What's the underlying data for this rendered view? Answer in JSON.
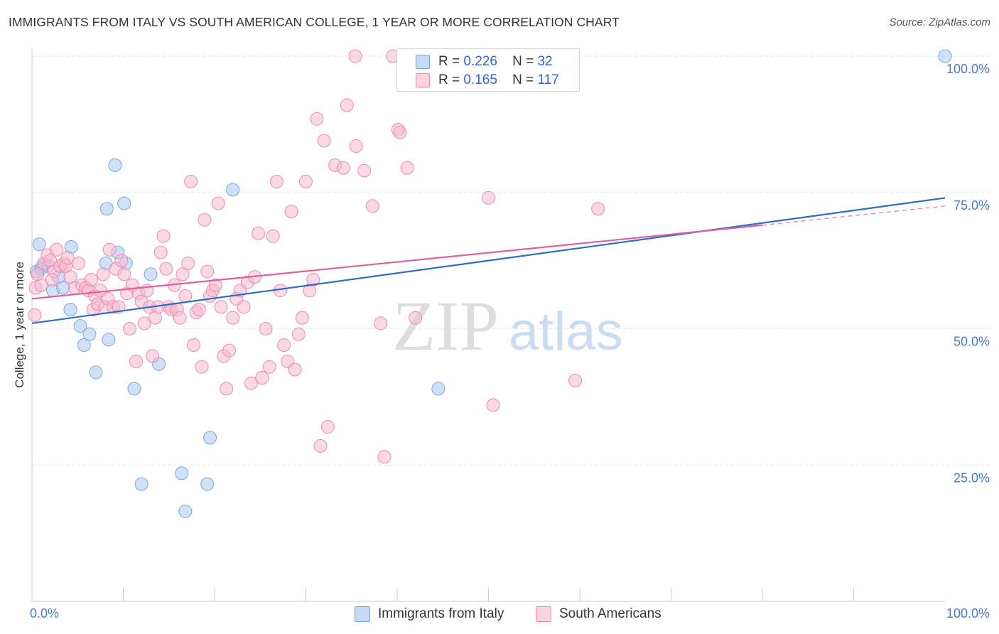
{
  "title": "IMMIGRANTS FROM ITALY VS SOUTH AMERICAN COLLEGE, 1 YEAR OR MORE CORRELATION CHART",
  "source": "Source: ZipAtlas.com",
  "watermark": {
    "zip": "ZIP",
    "atlas": "atlas"
  },
  "legend": {
    "rows": [
      {
        "r_label": "R =",
        "r_value": "0.226",
        "n_label": "N =",
        "n_value": "32",
        "color": "#a9c8f0"
      },
      {
        "r_label": "R =",
        "r_value": "0.165",
        "n_label": "N =",
        "n_value": "117",
        "color": "#f6b8cd"
      }
    ]
  },
  "bottom_legend": [
    "Immigrants from Italy",
    "South Americans"
  ],
  "chart_data": {
    "type": "scatter",
    "xlabel": "",
    "ylabel": "College, 1 year or more",
    "xlim": [
      0,
      100
    ],
    "ylim": [
      0,
      100
    ],
    "x_tick_labels": [
      {
        "value": 0,
        "label": "0.0%"
      },
      {
        "value": 100,
        "label": "100.0%"
      }
    ],
    "y_tick_labels": [
      {
        "value": 25,
        "label": "25.0%"
      },
      {
        "value": 50,
        "label": "50.0%"
      },
      {
        "value": 75,
        "label": "75.0%"
      },
      {
        "value": 100,
        "label": "100.0%"
      }
    ],
    "grid": true,
    "series": [
      {
        "name": "Immigrants from Italy",
        "color": "#a9c8f0",
        "stroke": "#7aa6dd",
        "line_color": "#2d6bcc",
        "trend": {
          "x0": 0,
          "y0": 51.0,
          "x1": 100,
          "y1": 74.0
        },
        "points": [
          [
            0.5,
            60.5
          ],
          [
            0.8,
            65.5
          ],
          [
            1.2,
            61.5
          ],
          [
            1.8,
            61.5
          ],
          [
            2.3,
            57.0
          ],
          [
            2.9,
            59.5
          ],
          [
            3.4,
            57.5
          ],
          [
            4.3,
            65.0
          ],
          [
            4.2,
            53.5
          ],
          [
            5.3,
            50.5
          ],
          [
            5.7,
            47.0
          ],
          [
            6.3,
            49.0
          ],
          [
            7.0,
            42.0
          ],
          [
            8.1,
            62.0
          ],
          [
            8.2,
            72.0
          ],
          [
            8.4,
            48.0
          ],
          [
            9.1,
            80.0
          ],
          [
            9.4,
            64.0
          ],
          [
            10.1,
            73.0
          ],
          [
            10.3,
            62.0
          ],
          [
            11.2,
            39.0
          ],
          [
            12.0,
            21.5
          ],
          [
            13.0,
            60.0
          ],
          [
            13.9,
            43.5
          ],
          [
            16.4,
            23.5
          ],
          [
            16.8,
            16.5
          ],
          [
            19.2,
            21.5
          ],
          [
            19.5,
            30.0
          ],
          [
            22.0,
            75.5
          ],
          [
            44.5,
            39.0
          ],
          [
            100.0,
            100.0
          ],
          [
            1.0,
            61.0
          ]
        ]
      },
      {
        "name": "South Americans",
        "color": "#f6b8cd",
        "stroke": "#eb8cae",
        "line_color": "#e0609a",
        "trend": {
          "x0": 0,
          "y0": 55.5,
          "x1": 80,
          "y1": 69.0
        },
        "trend_ext": {
          "x0": 80,
          "y0": 69.0,
          "x1": 100,
          "y1": 72.5
        },
        "points": [
          [
            0.3,
            52.5
          ],
          [
            0.4,
            57.5
          ],
          [
            0.6,
            60.0
          ],
          [
            1.3,
            62.0
          ],
          [
            1.7,
            63.5
          ],
          [
            2.0,
            62.5
          ],
          [
            2.4,
            60.5
          ],
          [
            2.7,
            64.5
          ],
          [
            3.1,
            61.5
          ],
          [
            3.5,
            62.0
          ],
          [
            3.7,
            61.5
          ],
          [
            3.9,
            63.0
          ],
          [
            4.2,
            59.5
          ],
          [
            4.7,
            57.5
          ],
          [
            5.1,
            62.0
          ],
          [
            5.5,
            58.0
          ],
          [
            5.9,
            57.5
          ],
          [
            6.2,
            57.0
          ],
          [
            6.5,
            59.0
          ],
          [
            6.7,
            53.5
          ],
          [
            6.9,
            56.0
          ],
          [
            7.2,
            54.5
          ],
          [
            7.5,
            57.0
          ],
          [
            7.8,
            60.0
          ],
          [
            8.0,
            54.0
          ],
          [
            8.3,
            55.5
          ],
          [
            8.5,
            64.5
          ],
          [
            8.9,
            54.0
          ],
          [
            9.2,
            61.0
          ],
          [
            9.5,
            54.0
          ],
          [
            9.8,
            62.5
          ],
          [
            10.1,
            60.0
          ],
          [
            10.4,
            56.5
          ],
          [
            10.7,
            50.0
          ],
          [
            11.0,
            58.0
          ],
          [
            11.4,
            44.0
          ],
          [
            11.7,
            56.5
          ],
          [
            12.0,
            55.0
          ],
          [
            12.3,
            51.0
          ],
          [
            12.6,
            57.0
          ],
          [
            12.9,
            54.0
          ],
          [
            13.2,
            45.0
          ],
          [
            13.5,
            52.0
          ],
          [
            13.8,
            54.0
          ],
          [
            14.1,
            64.0
          ],
          [
            14.4,
            67.0
          ],
          [
            14.7,
            61.0
          ],
          [
            15.0,
            54.0
          ],
          [
            15.3,
            53.5
          ],
          [
            15.6,
            58.0
          ],
          [
            15.9,
            53.5
          ],
          [
            16.2,
            52.0
          ],
          [
            16.5,
            60.0
          ],
          [
            16.8,
            56.0
          ],
          [
            17.1,
            62.0
          ],
          [
            17.4,
            77.0
          ],
          [
            17.7,
            47.0
          ],
          [
            18.0,
            53.0
          ],
          [
            18.3,
            53.5
          ],
          [
            18.6,
            43.0
          ],
          [
            18.9,
            70.0
          ],
          [
            19.2,
            60.5
          ],
          [
            19.5,
            56.0
          ],
          [
            19.8,
            57.0
          ],
          [
            20.1,
            58.0
          ],
          [
            20.4,
            73.0
          ],
          [
            20.7,
            54.0
          ],
          [
            21.0,
            45.0
          ],
          [
            21.3,
            39.0
          ],
          [
            21.6,
            46.0
          ],
          [
            22.0,
            52.0
          ],
          [
            22.4,
            55.5
          ],
          [
            22.8,
            57.0
          ],
          [
            23.2,
            54.0
          ],
          [
            23.6,
            58.5
          ],
          [
            24.0,
            40.0
          ],
          [
            24.4,
            59.5
          ],
          [
            24.8,
            67.5
          ],
          [
            25.2,
            41.0
          ],
          [
            25.6,
            50.0
          ],
          [
            26.0,
            43.0
          ],
          [
            26.4,
            67.0
          ],
          [
            26.8,
            77.0
          ],
          [
            27.2,
            57.0
          ],
          [
            27.6,
            47.0
          ],
          [
            28.0,
            44.0
          ],
          [
            28.4,
            71.5
          ],
          [
            28.8,
            42.5
          ],
          [
            29.2,
            49.0
          ],
          [
            29.6,
            52.0
          ],
          [
            30.0,
            77.0
          ],
          [
            30.4,
            57.0
          ],
          [
            30.8,
            59.0
          ],
          [
            31.2,
            88.5
          ],
          [
            31.6,
            28.5
          ],
          [
            32.0,
            84.5
          ],
          [
            32.4,
            32.0
          ],
          [
            33.2,
            80.0
          ],
          [
            34.1,
            79.5
          ],
          [
            34.5,
            91.0
          ],
          [
            35.4,
            100.0
          ],
          [
            35.5,
            83.5
          ],
          [
            36.4,
            79.0
          ],
          [
            37.3,
            72.5
          ],
          [
            38.2,
            51.0
          ],
          [
            38.6,
            26.5
          ],
          [
            39.5,
            100.0
          ],
          [
            40.1,
            86.5
          ],
          [
            40.3,
            86.0
          ],
          [
            41.1,
            79.5
          ],
          [
            42.0,
            52.0
          ],
          [
            50.5,
            36.0
          ],
          [
            50.0,
            74.0
          ],
          [
            59.5,
            40.5
          ],
          [
            62.0,
            72.0
          ],
          [
            1.0,
            58.0
          ],
          [
            2.2,
            59.0
          ]
        ]
      }
    ]
  }
}
